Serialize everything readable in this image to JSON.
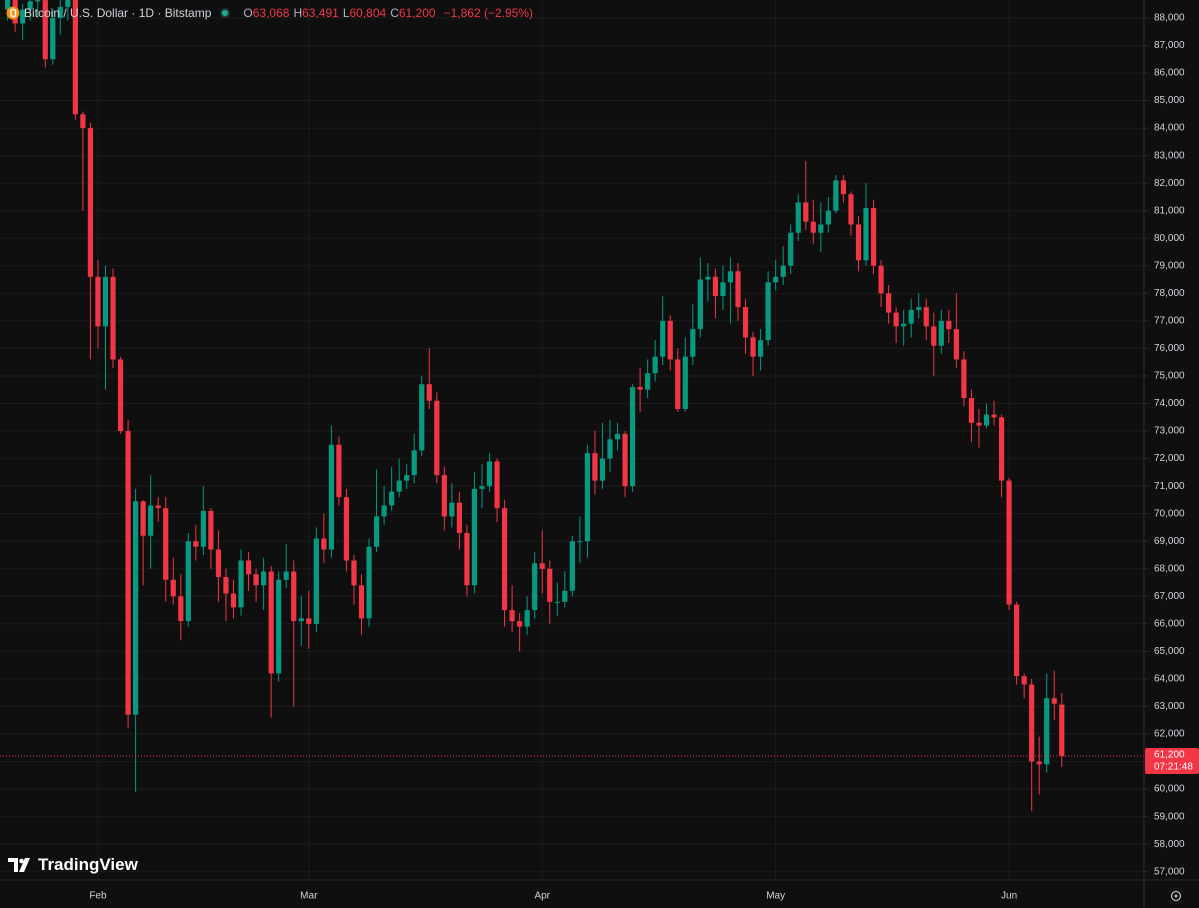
{
  "header": {
    "symbol": "Bitcoin / U.S. Dollar · 1D · Bitstamp",
    "ohlc": [
      {
        "key": "O",
        "value": "63,068"
      },
      {
        "key": "H",
        "value": "63,491"
      },
      {
        "key": "L",
        "value": "60,804"
      },
      {
        "key": "C",
        "value": "61,200"
      }
    ],
    "change": "−1,862 (−2.95%)"
  },
  "brand": "TradingView",
  "chart_data": {
    "type": "candlestick",
    "up_color": "#089981",
    "down_color": "#f23645",
    "grid": true,
    "ylim": [
      56700,
      88650
    ],
    "yticks": [
      {
        "value": 57000,
        "label": "57,000"
      },
      {
        "value": 58000,
        "label": "58,000"
      },
      {
        "value": 59000,
        "label": "59,000"
      },
      {
        "value": 60000,
        "label": "60,000"
      },
      {
        "value": 61000,
        "label": "61,000"
      },
      {
        "value": 62000,
        "label": "62,000"
      },
      {
        "value": 63000,
        "label": "63,000"
      },
      {
        "value": 64000,
        "label": "64,000"
      },
      {
        "value": 65000,
        "label": "65,000"
      },
      {
        "value": 66000,
        "label": "66,000"
      },
      {
        "value": 67000,
        "label": "67,000"
      },
      {
        "value": 68000,
        "label": "68,000"
      },
      {
        "value": 69000,
        "label": "69,000"
      },
      {
        "value": 70000,
        "label": "70,000"
      },
      {
        "value": 71000,
        "label": "71,000"
      },
      {
        "value": 72000,
        "label": "72,000"
      },
      {
        "value": 73000,
        "label": "73,000"
      },
      {
        "value": 74000,
        "label": "74,000"
      },
      {
        "value": 75000,
        "label": "75,000"
      },
      {
        "value": 76000,
        "label": "76,000"
      },
      {
        "value": 77000,
        "label": "77,000"
      },
      {
        "value": 78000,
        "label": "78,000"
      },
      {
        "value": 79000,
        "label": "79,000"
      },
      {
        "value": 80000,
        "label": "80,000"
      },
      {
        "value": 81000,
        "label": "81,000"
      },
      {
        "value": 82000,
        "label": "82,000"
      },
      {
        "value": 83000,
        "label": "83,000"
      },
      {
        "value": 84000,
        "label": "84,000"
      },
      {
        "value": 85000,
        "label": "85,000"
      },
      {
        "value": 86000,
        "label": "86,000"
      },
      {
        "value": 87000,
        "label": "87,000"
      },
      {
        "value": 88000,
        "label": "88,000"
      }
    ],
    "last_price": {
      "value": 61200,
      "label": "61,200"
    },
    "countdown": "07:21:48",
    "categories": [
      null,
      null,
      null,
      null,
      null,
      null,
      null,
      null,
      null,
      null,
      null,
      null,
      "Feb",
      null,
      null,
      null,
      null,
      null,
      null,
      null,
      null,
      null,
      null,
      null,
      null,
      null,
      null,
      null,
      null,
      null,
      null,
      null,
      null,
      null,
      null,
      null,
      null,
      null,
      null,
      null,
      "Mar",
      null,
      null,
      null,
      null,
      null,
      null,
      null,
      null,
      null,
      null,
      null,
      null,
      null,
      null,
      null,
      null,
      null,
      null,
      null,
      null,
      null,
      null,
      null,
      null,
      null,
      null,
      null,
      null,
      null,
      null,
      "Apr",
      null,
      null,
      null,
      null,
      null,
      null,
      null,
      null,
      null,
      null,
      null,
      null,
      null,
      null,
      null,
      null,
      null,
      null,
      null,
      null,
      null,
      null,
      null,
      null,
      null,
      null,
      null,
      null,
      null,
      null,
      "May",
      null,
      null,
      null,
      null,
      null,
      null,
      null,
      null,
      null,
      null,
      null,
      null,
      null,
      null,
      null,
      null,
      null,
      null,
      null,
      null,
      null,
      null,
      null,
      null,
      null,
      null,
      null,
      null,
      null,
      null,
      "Jun",
      null,
      null,
      null,
      null,
      null,
      null,
      null,
      null
    ],
    "ohlc": {
      "open": [
        88300,
        88700,
        87800,
        88300,
        88600,
        88900,
        86500,
        88000,
        88400,
        88700,
        84500,
        84000,
        78600,
        76800,
        78600,
        75600,
        73000,
        62700,
        70450,
        69200,
        70300,
        70200,
        67600,
        67000,
        66100,
        69000,
        68800,
        70100,
        68700,
        67700,
        67100,
        66600,
        68300,
        67800,
        67400,
        67900,
        64200,
        67600,
        67900,
        66100,
        66200,
        66000,
        69100,
        68700,
        72500,
        70600,
        68300,
        67400,
        66200,
        68800,
        69900,
        70300,
        70800,
        71200,
        71400,
        72300,
        74700,
        74100,
        71400,
        69900,
        70400,
        69300,
        67400,
        70900,
        71000,
        71900,
        70200,
        66500,
        66100,
        65900,
        66500,
        68200,
        68000,
        66800,
        66800,
        67200,
        69000,
        69000,
        72200,
        71200,
        72000,
        72700,
        72900,
        71000,
        74600,
        74500,
        75100,
        75700,
        77000,
        75600,
        73800,
        75700,
        76700,
        78500,
        78600,
        77900,
        78400,
        78800,
        77500,
        76400,
        75700,
        76300,
        78400,
        78600,
        79000,
        80200,
        81300,
        80600,
        80200,
        80500,
        81000,
        82100,
        81600,
        80500,
        79200,
        81100,
        79000,
        78000,
        77300,
        76800,
        76900,
        77400,
        77500,
        76800,
        76100,
        77000,
        76700,
        75600,
        74200,
        73300,
        73200,
        73600,
        73500,
        71200,
        66700,
        64100,
        63800,
        61000,
        60900,
        63300,
        63068
      ],
      "high": [
        89000,
        89100,
        88500,
        89000,
        89200,
        89100,
        88300,
        88700,
        89300,
        88900,
        84600,
        84200,
        79200,
        79000,
        78900,
        75700,
        73400,
        70900,
        70500,
        71400,
        70600,
        70600,
        68400,
        67800,
        69300,
        69600,
        71000,
        70200,
        69400,
        68000,
        67600,
        68700,
        68600,
        68000,
        68400,
        68100,
        67900,
        68900,
        68300,
        67000,
        67200,
        69500,
        70000,
        73200,
        72800,
        70900,
        68500,
        67800,
        69100,
        71600,
        71000,
        71700,
        72000,
        71800,
        72900,
        75000,
        76000,
        74400,
        71700,
        71100,
        70800,
        69600,
        71500,
        71800,
        72200,
        72000,
        70500,
        67400,
        66400,
        67000,
        68600,
        69400,
        68300,
        67500,
        67900,
        69200,
        69900,
        72500,
        73000,
        73300,
        73400,
        73300,
        73000,
        74700,
        75300,
        75600,
        76300,
        77900,
        77200,
        76000,
        76400,
        77600,
        79300,
        79100,
        78900,
        79000,
        79300,
        79100,
        77800,
        76600,
        76700,
        78800,
        79200,
        79700,
        80500,
        81600,
        82800,
        81400,
        81300,
        81500,
        82300,
        82300,
        81700,
        80800,
        82000,
        81400,
        79200,
        78300,
        77500,
        77400,
        77800,
        78000,
        77800,
        77300,
        77400,
        77400,
        78000,
        75900,
        74500,
        73800,
        74000,
        74100,
        73600,
        71300,
        66800,
        64200,
        64000,
        61900,
        64200,
        64300,
        63491
      ],
      "low": [
        87900,
        87500,
        87200,
        87900,
        88000,
        86200,
        86300,
        87400,
        87900,
        84300,
        81000,
        75600,
        76000,
        74500,
        75300,
        72900,
        62200,
        59900,
        67400,
        68000,
        69700,
        66800,
        66700,
        65400,
        65900,
        68300,
        68500,
        68000,
        66800,
        66100,
        66200,
        66300,
        67200,
        66800,
        66500,
        62600,
        63900,
        67300,
        63000,
        65200,
        65100,
        65700,
        68200,
        68400,
        70300,
        67900,
        66700,
        65600,
        65900,
        68600,
        69600,
        70100,
        70600,
        70900,
        71100,
        72100,
        73800,
        71100,
        69400,
        69500,
        68700,
        67000,
        67100,
        70200,
        70800,
        69700,
        65900,
        65700,
        65000,
        65600,
        66200,
        67100,
        66000,
        66300,
        66600,
        67000,
        68200,
        68400,
        70700,
        70900,
        71500,
        72300,
        70600,
        70800,
        73700,
        74200,
        74800,
        75400,
        75200,
        73700,
        73700,
        75400,
        76400,
        77700,
        77100,
        77400,
        76900,
        77000,
        75800,
        75000,
        75200,
        76100,
        78100,
        78300,
        78700,
        79900,
        80300,
        79800,
        79500,
        80200,
        80900,
        81300,
        80100,
        78800,
        79000,
        78700,
        77500,
        76900,
        76200,
        76100,
        76400,
        77100,
        76300,
        75000,
        75800,
        76200,
        75300,
        73900,
        72600,
        72400,
        73100,
        73200,
        70600,
        66500,
        63800,
        63300,
        59200,
        59800,
        60600,
        62500,
        60804
      ],
      "close": [
        88700,
        87800,
        88300,
        88600,
        88900,
        86500,
        88000,
        88400,
        88700,
        84500,
        84000,
        78600,
        76800,
        78600,
        75600,
        73000,
        62700,
        70450,
        69200,
        70300,
        70200,
        67600,
        67000,
        66100,
        69000,
        68800,
        70100,
        68700,
        67700,
        67100,
        66600,
        68300,
        67800,
        67400,
        67900,
        64200,
        67600,
        67900,
        66100,
        66200,
        66000,
        69100,
        68700,
        72500,
        70600,
        68300,
        67400,
        66200,
        68800,
        69900,
        70300,
        70800,
        71200,
        71400,
        72300,
        74700,
        74100,
        71400,
        69900,
        70400,
        69300,
        67400,
        70900,
        71000,
        71900,
        70200,
        66500,
        66100,
        65900,
        66500,
        68200,
        68000,
        66800,
        66800,
        67200,
        69000,
        69000,
        72200,
        71200,
        72000,
        72700,
        72900,
        71000,
        74600,
        74500,
        75100,
        75700,
        77000,
        75600,
        73800,
        75700,
        76700,
        78500,
        78600,
        77900,
        78400,
        78800,
        77500,
        76400,
        75700,
        76300,
        78400,
        78600,
        79000,
        80200,
        81300,
        80600,
        80200,
        80500,
        81000,
        82100,
        81600,
        80500,
        79200,
        81100,
        79000,
        78000,
        77300,
        76800,
        76900,
        77400,
        77500,
        76800,
        76100,
        77000,
        76700,
        75600,
        74200,
        73300,
        73200,
        73600,
        73500,
        71200,
        66700,
        64100,
        63800,
        61000,
        60900,
        63300,
        63100,
        61200
      ]
    }
  }
}
